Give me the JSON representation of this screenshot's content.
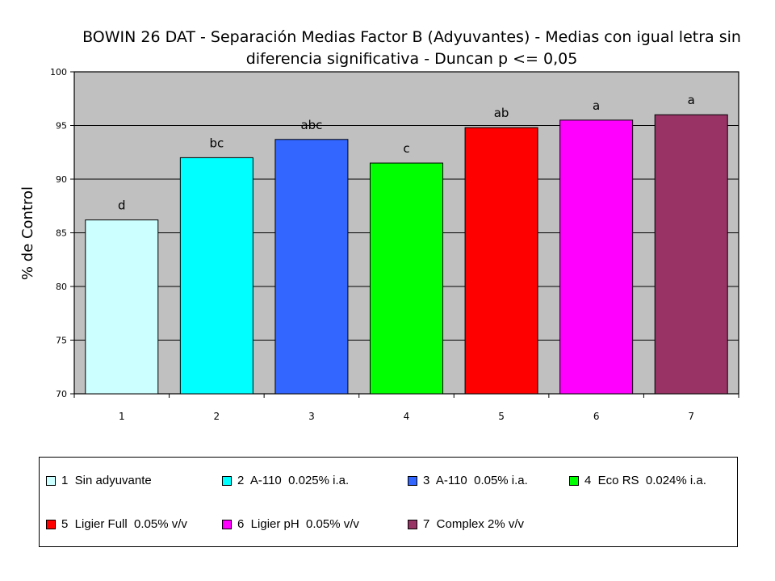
{
  "chart_data": {
    "type": "bar",
    "title": "BOWIN 26 DAT - Separación Medias Factor B (Adyuvantes) - Medias con igual letra sin diferencia significativa - Duncan p <=  0,05",
    "xlabel": "",
    "ylabel": "% de Control",
    "ylim": [
      70,
      100
    ],
    "yticks": [
      "70",
      "75",
      "80",
      "85",
      "90",
      "95",
      "100"
    ],
    "grid": true,
    "plot_background": "#c0c0c0",
    "categories": [
      "1",
      "2",
      "3",
      "4",
      "5",
      "6",
      "7"
    ],
    "values": [
      86.2,
      92.0,
      93.7,
      91.5,
      94.8,
      95.5,
      96.0
    ],
    "letters": [
      "d",
      "bc",
      "abc",
      "c",
      "ab",
      "a",
      "a"
    ],
    "colors": [
      "#ccffff",
      "#00ffff",
      "#3366ff",
      "#00ff00",
      "#ff0000",
      "#ff00ff",
      "#993366"
    ],
    "legend": [
      "1  Sin adyuvante",
      "2  A-110  0.025% i.a.",
      "3  A-110  0.05% i.a.",
      "4  Eco RS  0.024% i.a.",
      "5  Ligier Full  0.05% v/v",
      "6  Ligier pH  0.05% v/v",
      "7  Complex 2% v/v"
    ],
    "legend_placement": "bottom"
  }
}
